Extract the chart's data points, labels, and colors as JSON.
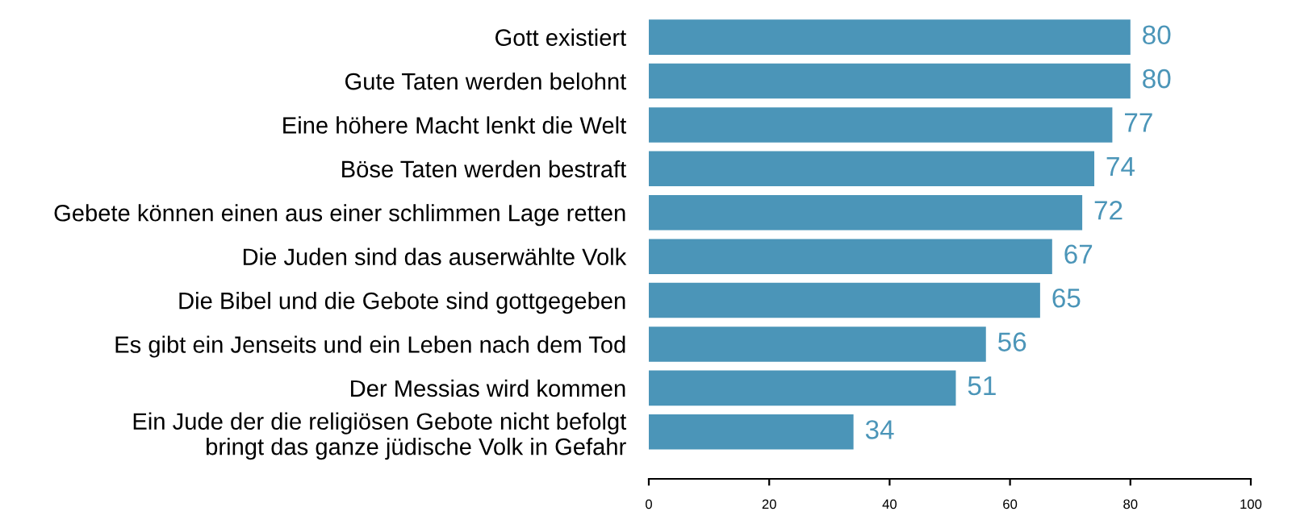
{
  "chart_data": {
    "type": "bar",
    "orientation": "horizontal",
    "categories": [
      "Gott existiert",
      "Gute Taten werden belohnt",
      "Eine höhere Macht lenkt die Welt",
      "Böse Taten werden bestraft",
      "Gebete können einen aus einer schlimmen Lage retten",
      "Die Juden sind das auserwählte Volk",
      "Die Bibel und die Gebote sind gottgegeben",
      "Es gibt ein Jenseits und ein Leben nach dem Tod",
      "Der Messias wird kommen",
      "Ein Jude der die religiösen Gebote nicht befolgt\nbringt das ganze jüdische Volk in Gefahr"
    ],
    "values": [
      80,
      80,
      77,
      74,
      72,
      67,
      65,
      56,
      51,
      34
    ],
    "color": "#4b95b8",
    "xlim": [
      0,
      100
    ],
    "xticks": [
      0,
      20,
      40,
      60,
      80,
      100
    ],
    "data_labels": true,
    "grid": false
  }
}
